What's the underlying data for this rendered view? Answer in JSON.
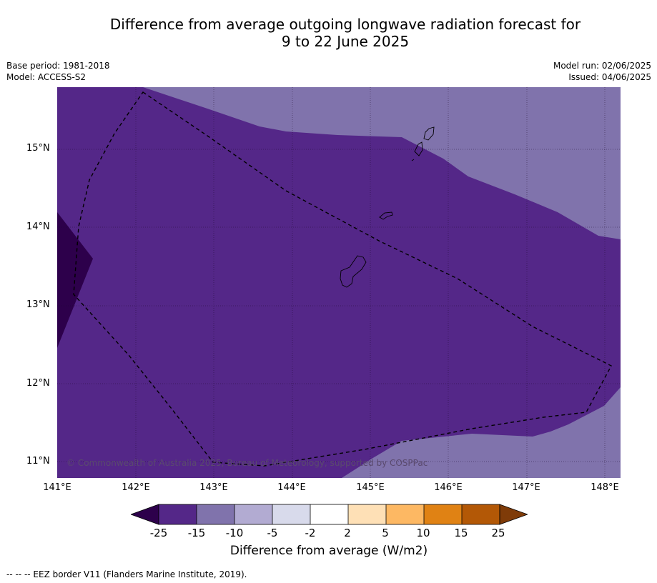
{
  "title_line1": "Difference from average outgoing longwave radiation forecast for",
  "title_line2": "9 to 22 June 2025",
  "base_period": "Base period: 1981-2018",
  "model": "Model: ACCESS-S2",
  "model_run": "Model run: 02/06/2025",
  "issued": "Issued: 04/06/2025",
  "copyright": "© Commonwealth of Australia 2025, Bureau of Meteorology, supported by COSPPac",
  "lat_labels": [
    "15°N",
    "14°N",
    "13°N",
    "12°N",
    "11°N"
  ],
  "lon_labels": [
    "141°E",
    "142°E",
    "143°E",
    "144°E",
    "145°E",
    "146°E",
    "147°E",
    "148°E"
  ],
  "colorbar": {
    "tick_labels": [
      "-25",
      "-15",
      "-10",
      "-5",
      "-2",
      "2",
      "5",
      "10",
      "15",
      "25"
    ],
    "title": "Difference from average (W/m2)",
    "colors": [
      "#2d004b",
      "#542788",
      "#8073ac",
      "#b2abd2",
      "#d8daeb",
      "#ffffff",
      "#fee0b6",
      "#fdb863",
      "#e08214",
      "#b35806",
      "#7f3b08"
    ]
  },
  "footer": "--  --  -- EEZ border V11 (Flanders Marine Institute, 2019)."
}
